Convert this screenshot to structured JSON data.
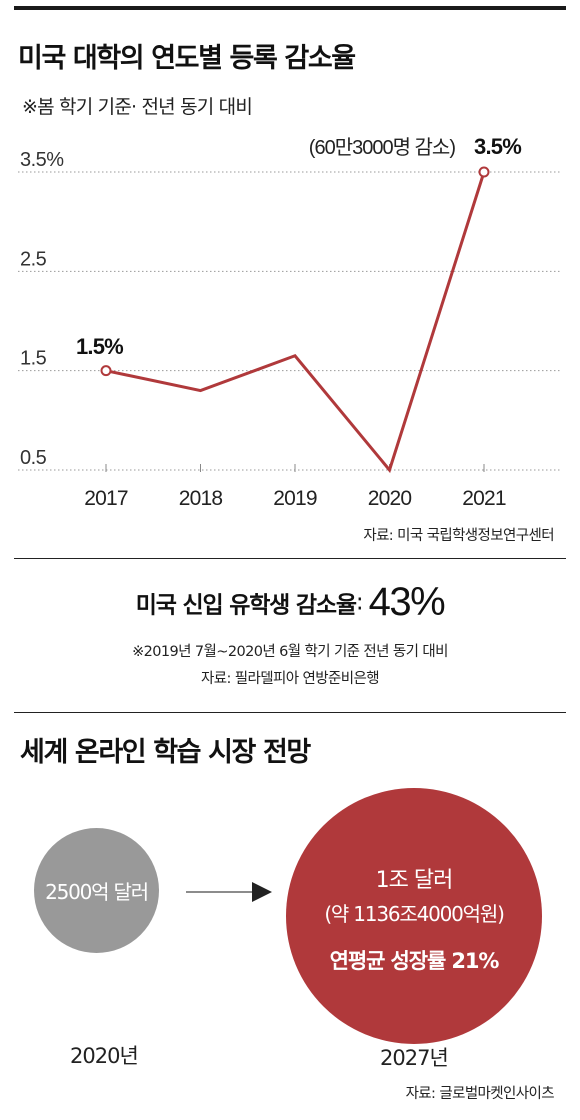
{
  "section1": {
    "title": "미국 대학의 연도별 등록 감소율",
    "subtitle": "※봄 학기 기준· 전년 동기 대비",
    "source": "자료: 미국 국립학생정보연구센터"
  },
  "chart_data": {
    "type": "line",
    "title": "미국 대학의 연도별 등록 감소율",
    "x": [
      "2017",
      "2018",
      "2019",
      "2020",
      "2021"
    ],
    "y_ticks": [
      "3.5%",
      "2.5",
      "1.5",
      "0.5"
    ],
    "ylim": [
      0.5,
      3.5
    ],
    "series": [
      {
        "values": [
          1.5,
          1.3,
          1.65,
          0.5,
          3.5
        ]
      }
    ],
    "annotations": [
      {
        "x": "2017",
        "text": "1.5%"
      },
      {
        "x": "2021",
        "text": "3.5%",
        "note": "(60만3000명 감소)"
      }
    ],
    "grid": "horizontal dotted",
    "colors": {
      "line": "#b0393b",
      "marker_fill": "#ffffff"
    }
  },
  "stat": {
    "label": "미국 신입 유학생 감소율",
    "colon": ":",
    "value": "43%",
    "note": "※2019년 7월~2020년 6월 학기 기준 전년 동기 대비",
    "source": "자료: 필라델피아 연방준비은행"
  },
  "section2": {
    "title": "세계 온라인 학습 시장 전망",
    "from_label": "2500억 달러",
    "from_year": "2020년",
    "to_label": "1조 달러",
    "to_sub": "(약 1136조4000억원)",
    "to_growth": "연평균 성장률 21%",
    "to_year": "2027년",
    "source": "자료: 글로벌마켓인사이츠",
    "colors": {
      "from_circle": "#999999",
      "to_circle": "#b0393b",
      "arrow": "#444444"
    }
  }
}
